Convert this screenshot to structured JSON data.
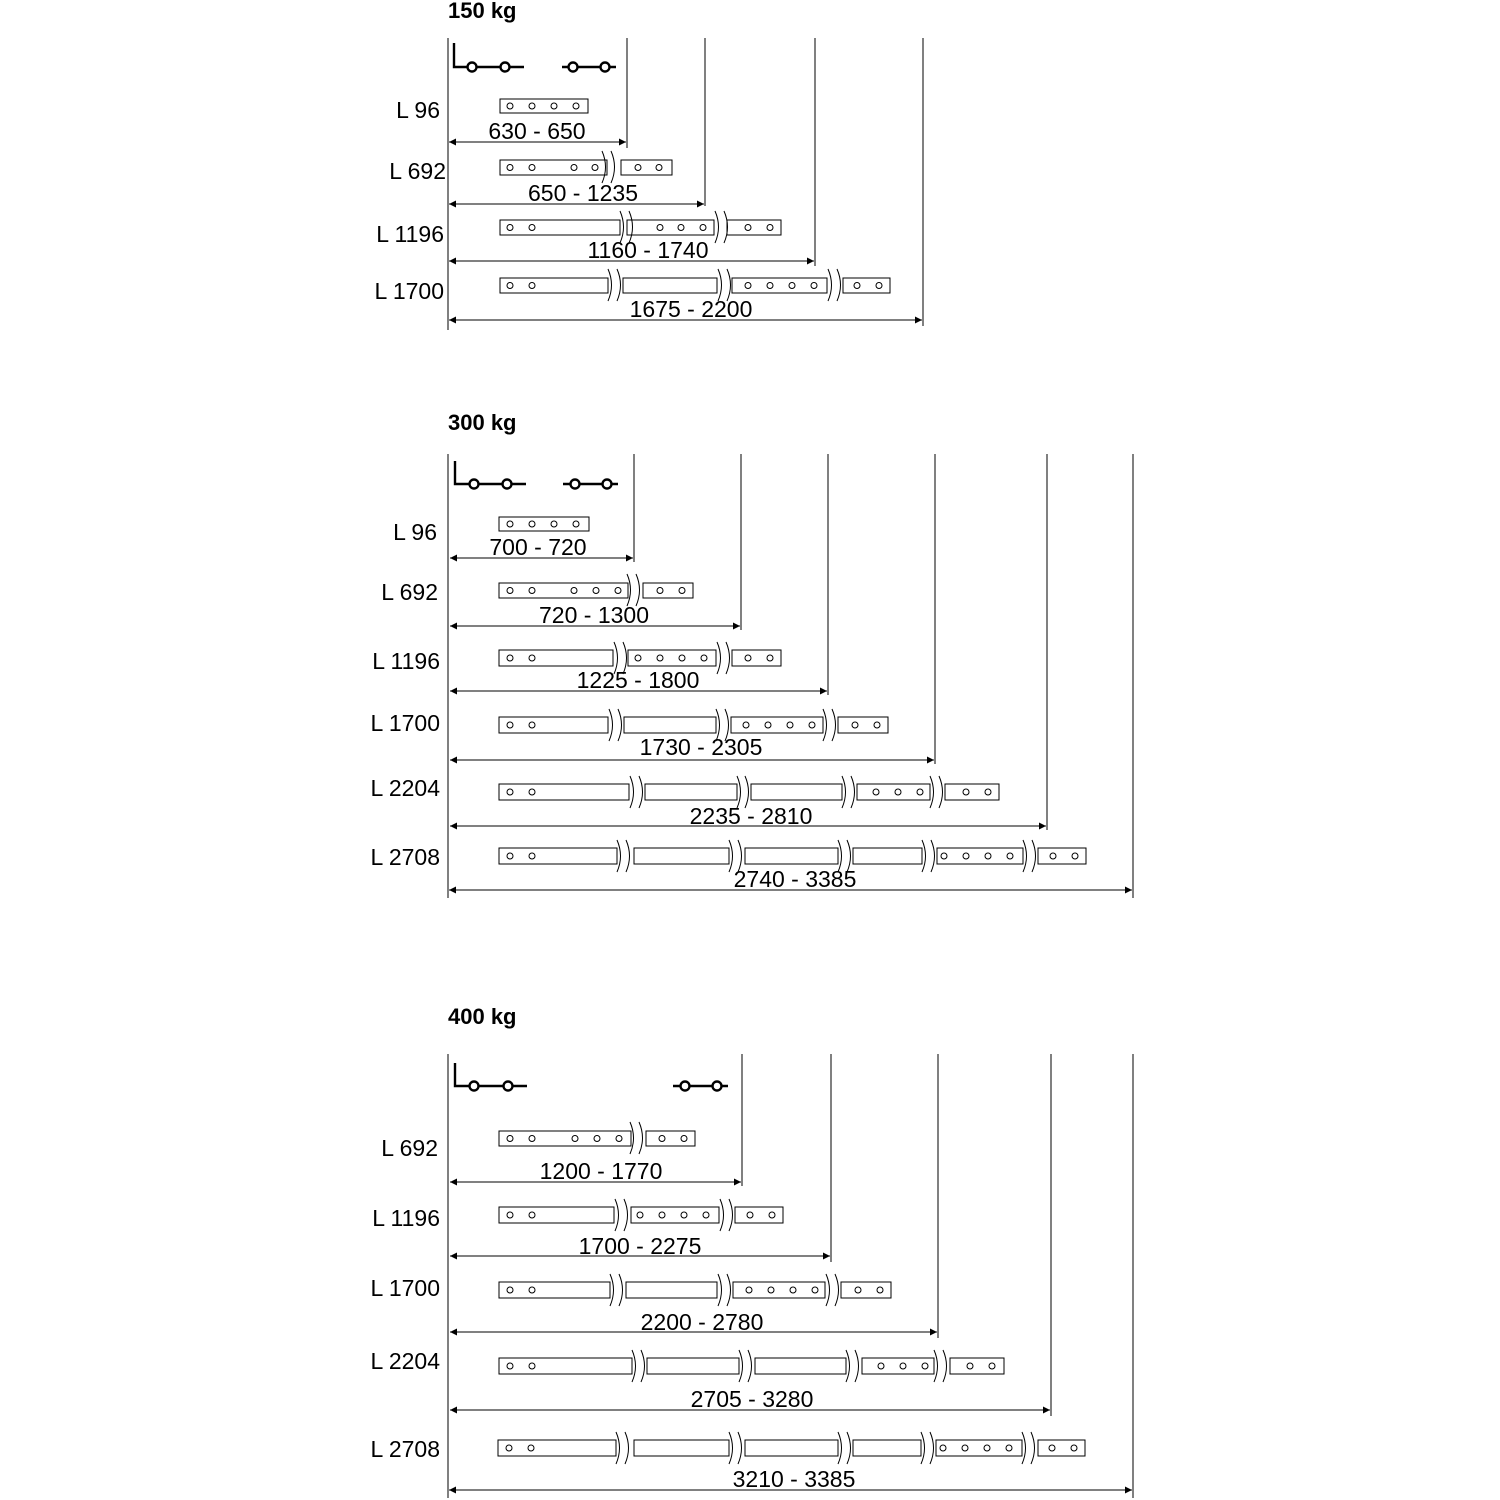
{
  "sections": [
    {
      "title": "150 kg",
      "rows": [
        {
          "label": "L 96",
          "range": "630 - 650"
        },
        {
          "label": "L 692",
          "range": "650 - 1235"
        },
        {
          "label": "L 1196",
          "range": "1160 - 1740"
        },
        {
          "label": "L 1700",
          "range": "1675 - 2200"
        }
      ]
    },
    {
      "title": "300 kg",
      "rows": [
        {
          "label": "L 96",
          "range": "700 - 720"
        },
        {
          "label": "L 692",
          "range": "720 - 1300"
        },
        {
          "label": "L 1196",
          "range": "1225 - 1800"
        },
        {
          "label": "L 1700",
          "range": "1730 - 2305"
        },
        {
          "label": "L 2204",
          "range": "2235 - 2810"
        },
        {
          "label": "L 2708",
          "range": "2740 - 3385"
        }
      ]
    },
    {
      "title": "400 kg",
      "rows": [
        {
          "label": "L 692",
          "range": "1200 - 1770"
        },
        {
          "label": "L 1196",
          "range": "1700 - 2275"
        },
        {
          "label": "L 1700",
          "range": "2200 - 2780"
        },
        {
          "label": "L 2204",
          "range": "2705 - 3280"
        },
        {
          "label": "L 2708",
          "range": "3210 - 3385"
        }
      ]
    }
  ]
}
